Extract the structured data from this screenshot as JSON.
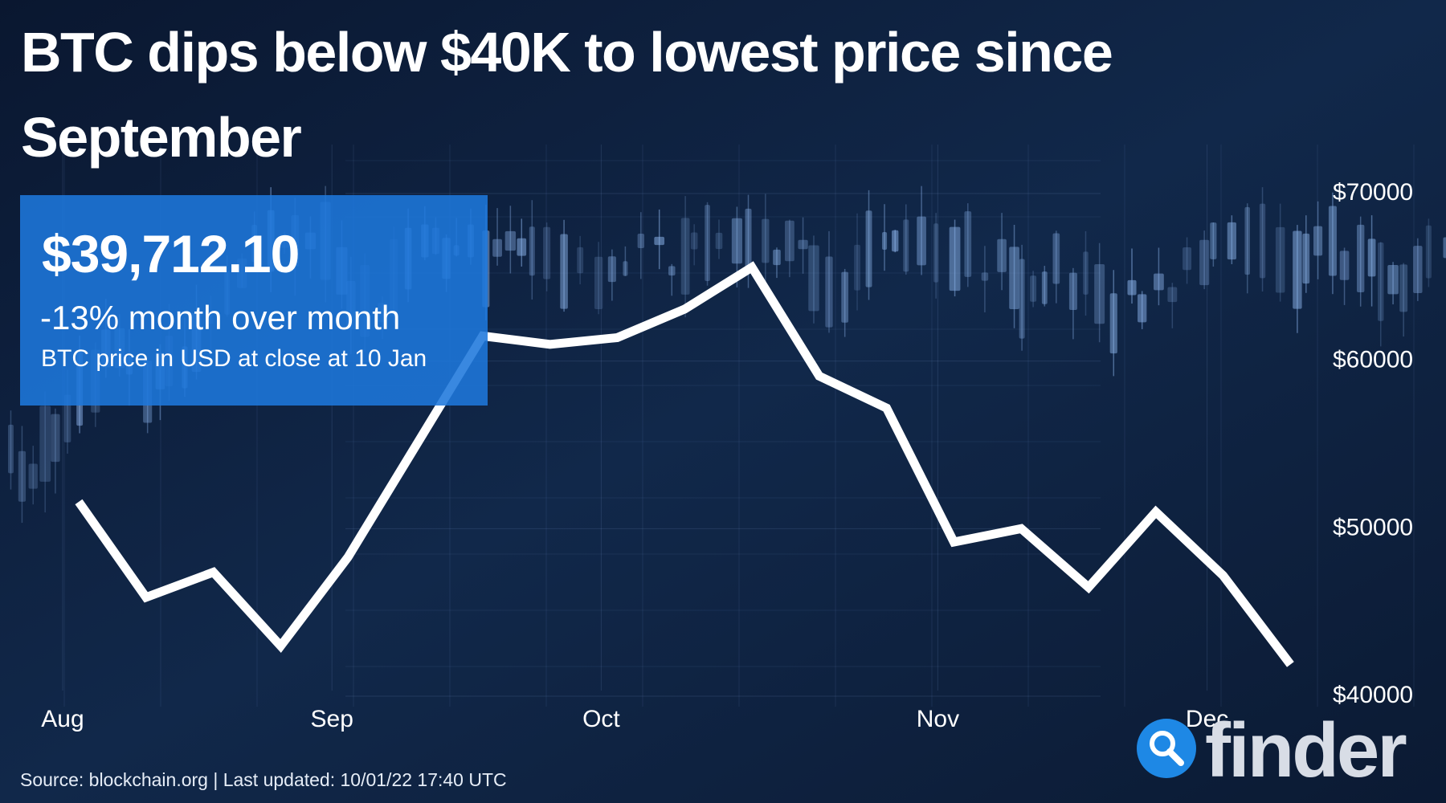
{
  "chart_data": {
    "type": "line",
    "title": "BTC dips below $40K to lowest price since September",
    "annotations": [
      "$39,712.10",
      "-13% month over month",
      "BTC price in USD at close at 10 Jan"
    ],
    "source": "Source: blockchain.org | Last updated: 10/01/22 17:40 UTC",
    "logo": "finder",
    "categories": [
      "Aug",
      null,
      null,
      null,
      "Sep",
      null,
      null,
      null,
      "Oct",
      null,
      null,
      null,
      null,
      "Nov",
      null,
      null,
      null,
      "Dec",
      null
    ],
    "values": [
      51600,
      45900,
      47400,
      43000,
      48300,
      54900,
      61500,
      61000,
      61400,
      63100,
      65600,
      59100,
      57200,
      49200,
      50000,
      46500,
      51000,
      47200,
      41900
    ],
    "color": "#ffffff",
    "ylim": [
      40000,
      70000
    ],
    "yticks": [
      {
        "value": 40000,
        "label": "$40000"
      },
      {
        "value": 50000,
        "label": "$50000"
      },
      {
        "value": 60000,
        "label": "$60000"
      },
      {
        "value": 70000,
        "label": "$70000"
      }
    ],
    "grid": true
  }
}
